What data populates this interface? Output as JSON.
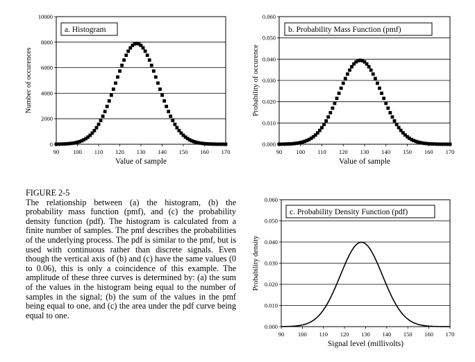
{
  "caption": {
    "figure_label": "FIGURE 2-5",
    "text": "The relationship between (a) the histogram, (b) the probability mass function (pmf), and (c) the probability density function (pdf). The histogram is calculated from a finite number of samples. The pmf describes the probabilities of the underlying process. The pdf is similar to the pmf, but is used with continuous rather than discrete signals. Even though the vertical axis of (b) and (c) have the same values (0 to 0.06), this is only a coincidence of this example. The amplitude of these three curves is determined by: (a) the sum of the values in the histogram being equal to the number of samples in the signal; (b) the sum of the values in the pmf being equal to one, and (c) the area under the pdf curve being equal to one."
  },
  "chart_data": [
    {
      "id": "a",
      "type": "scatter",
      "title": "a.  Histogram",
      "xlabel": "Value of sample",
      "ylabel": "Number of occurences",
      "xlim": [
        90,
        170
      ],
      "ylim": [
        0,
        10000
      ],
      "xticks": [
        "90",
        "100",
        "110",
        "120",
        "130",
        "140",
        "150",
        "160",
        "170"
      ],
      "yticks": [
        "0",
        "2000",
        "4000",
        "6000",
        "8000",
        "10000"
      ],
      "grid": "horizontal",
      "marker": "square",
      "distribution": {
        "mean": 128,
        "std": 10,
        "peak": 7900,
        "x_start": 90,
        "x_end": 170,
        "step": 1
      }
    },
    {
      "id": "b",
      "type": "scatter",
      "title": "b.  Probability Mass Function (pmf)",
      "xlabel": "Value of sample",
      "ylabel": "Probability of occurence",
      "xlim": [
        90,
        170
      ],
      "ylim": [
        0,
        0.06
      ],
      "xticks": [
        "90",
        "100",
        "110",
        "120",
        "130",
        "140",
        "150",
        "160",
        "170"
      ],
      "yticks": [
        "0.000",
        "0.010",
        "0.020",
        "0.030",
        "0.040",
        "0.050",
        "0.060"
      ],
      "grid": "horizontal",
      "marker": "square",
      "distribution": {
        "mean": 128,
        "std": 10,
        "peak": 0.0395,
        "x_start": 90,
        "x_end": 170,
        "step": 1
      }
    },
    {
      "id": "c",
      "type": "line",
      "title": "c.  Probability Density Function (pdf)",
      "xlabel": "Signal level (millivolts)",
      "ylabel": "Probability density",
      "xlim": [
        90,
        170
      ],
      "ylim": [
        0,
        0.06
      ],
      "xticks": [
        "90",
        "100",
        "110",
        "120",
        "130",
        "140",
        "150",
        "160",
        "170"
      ],
      "yticks": [
        "0.000",
        "0.010",
        "0.020",
        "0.030",
        "0.040",
        "0.050",
        "0.060"
      ],
      "grid": "horizontal",
      "distribution": {
        "mean": 128,
        "std": 10,
        "peak": 0.0399,
        "x_start": 90,
        "x_end": 170,
        "step": 0.5
      }
    }
  ]
}
